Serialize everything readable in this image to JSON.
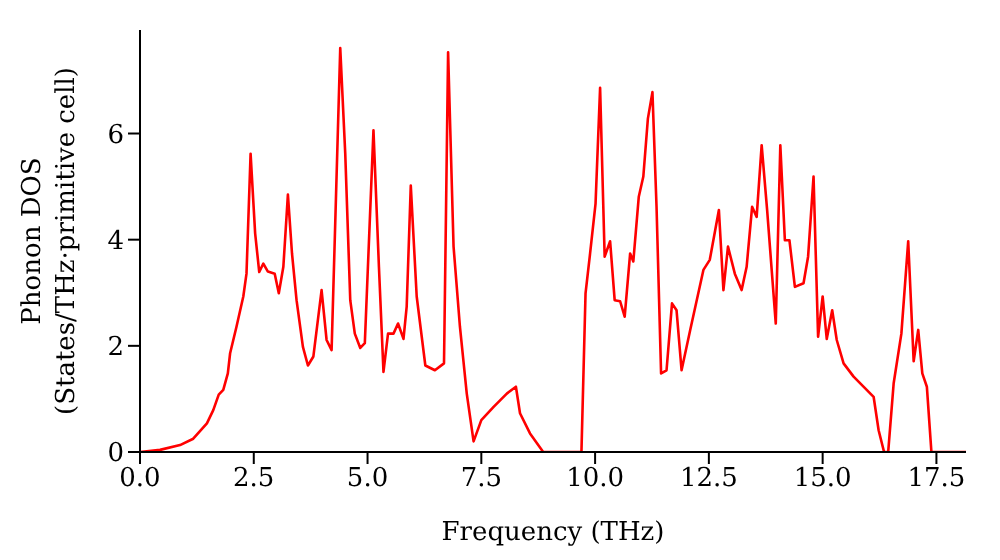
{
  "chart_data": {
    "type": "line",
    "xlabel": "Frequency (THz)",
    "ylabel": "Phonon DOS\n(States/THz·primitive cell)",
    "x": [
      0,
      0.44,
      0.88,
      1.17,
      1.47,
      1.61,
      1.73,
      1.83,
      1.93,
      1.98,
      2.12,
      2.27,
      2.34,
      2.43,
      2.53,
      2.62,
      2.71,
      2.81,
      2.96,
      3.05,
      3.15,
      3.25,
      3.34,
      3.44,
      3.58,
      3.69,
      3.81,
      3.99,
      4.1,
      4.21,
      4.4,
      4.51,
      4.62,
      4.72,
      4.84,
      4.94,
      5.13,
      5.25,
      5.35,
      5.45,
      5.57,
      5.67,
      5.79,
      5.86,
      5.95,
      6.08,
      6.27,
      6.48,
      6.68,
      6.77,
      6.89,
      7.03,
      7.18,
      7.33,
      7.5,
      7.77,
      8.06,
      8.26,
      8.35,
      8.57,
      8.86,
      9.7,
      9.79,
      9.89,
      10.01,
      10.11,
      10.21,
      10.33,
      10.43,
      10.55,
      10.65,
      10.77,
      10.84,
      10.96,
      11.06,
      11.16,
      11.26,
      11.35,
      11.45,
      11.57,
      11.69,
      11.79,
      11.9,
      12.09,
      12.38,
      12.52,
      12.72,
      12.82,
      12.92,
      13.07,
      13.22,
      13.33,
      13.45,
      13.55,
      13.66,
      13.78,
      13.97,
      14.07,
      14.17,
      14.27,
      14.39,
      14.58,
      14.68,
      14.8,
      14.9,
      15,
      15.09,
      15.21,
      15.31,
      15.46,
      15.68,
      16.12,
      16.23,
      16.35,
      16.44,
      16.56,
      16.73,
      16.88,
      17,
      17.1,
      17.19,
      17.29,
      17.39,
      18.15
    ],
    "series": [
      {
        "color": "#ff0000",
        "values": [
          0,
          0.04,
          0.13,
          0.25,
          0.54,
          0.79,
          1.08,
          1.17,
          1.48,
          1.86,
          2.36,
          2.93,
          3.36,
          5.62,
          4.12,
          3.39,
          3.55,
          3.4,
          3.36,
          2.99,
          3.49,
          4.85,
          3.74,
          2.86,
          1.98,
          1.63,
          1.8,
          3.05,
          2.11,
          1.92,
          7.61,
          5.62,
          2.86,
          2.23,
          1.96,
          2.05,
          6.06,
          3.49,
          1.51,
          2.23,
          2.23,
          2.42,
          2.13,
          2.74,
          5.02,
          2.93,
          1.63,
          1.54,
          1.67,
          7.53,
          3.87,
          2.36,
          1.1,
          0.2,
          0.6,
          0.85,
          1.1,
          1.23,
          0.73,
          0.35,
          0,
          0,
          2.99,
          3.74,
          4.68,
          6.86,
          3.68,
          3.97,
          2.86,
          2.84,
          2.55,
          3.74,
          3.59,
          4.81,
          5.19,
          6.28,
          6.78,
          4.62,
          1.48,
          1.54,
          2.8,
          2.67,
          1.54,
          2.3,
          3.43,
          3.62,
          4.56,
          3.05,
          3.87,
          3.36,
          3.05,
          3.49,
          4.62,
          4.43,
          5.78,
          4.56,
          2.42,
          5.78,
          3.99,
          3.99,
          3.11,
          3.18,
          3.68,
          5.19,
          2.17,
          2.93,
          2.13,
          2.67,
          2.11,
          1.67,
          1.42,
          1.04,
          0.41,
          0,
          0,
          1.29,
          2.23,
          3.97,
          1.71,
          2.3,
          1.48,
          1.23,
          0,
          0
        ]
      }
    ],
    "xlim": [
      0,
      18.15
    ],
    "xticks": [
      {
        "value": 0,
        "label": "0.0"
      },
      {
        "value": 2.5,
        "label": "2.5"
      },
      {
        "value": 5,
        "label": "5.0"
      },
      {
        "value": 7.5,
        "label": "7.5"
      },
      {
        "value": 10,
        "label": "10.0"
      },
      {
        "value": 12.5,
        "label": "12.5"
      },
      {
        "value": 15,
        "label": "15.0"
      },
      {
        "value": 17.5,
        "label": "17.5"
      }
    ],
    "ylim": [
      0,
      7.95
    ],
    "yticks": [
      0,
      2,
      4,
      6
    ],
    "grid": false,
    "legend": false,
    "marker": "none",
    "line_style": "solid"
  }
}
